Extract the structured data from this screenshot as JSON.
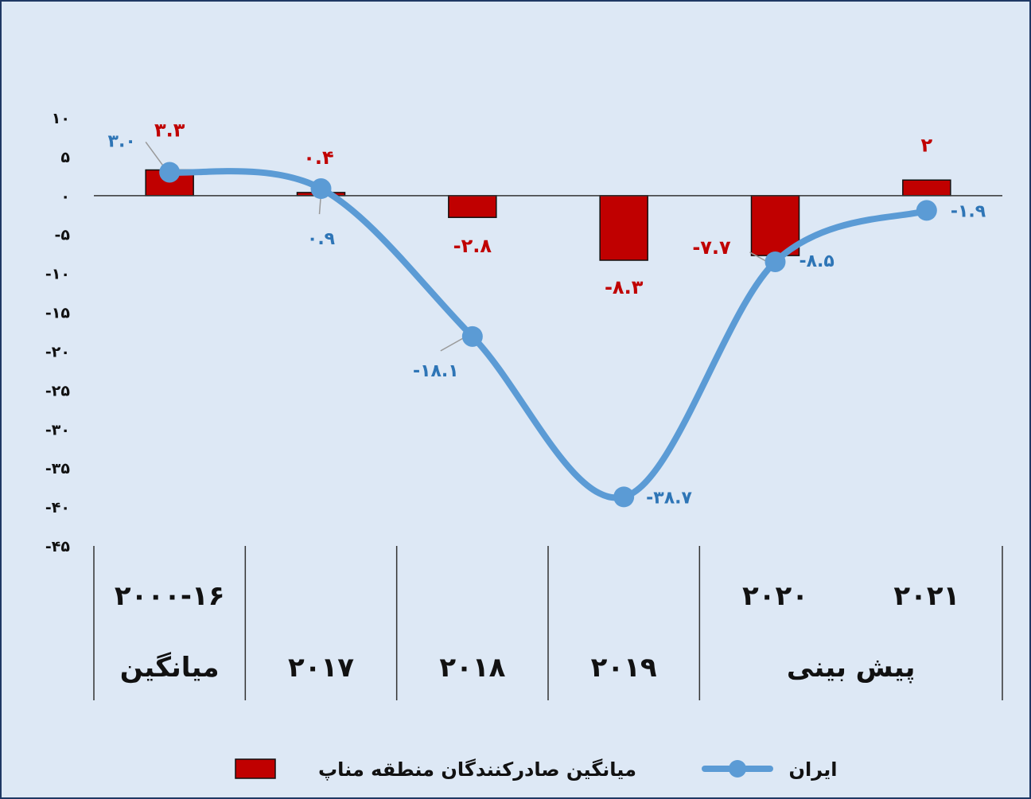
{
  "chart_data": {
    "type": "bar",
    "ylim": [
      -45,
      10
    ],
    "y_ticks": [
      "۱۰",
      "۵",
      "۰",
      "-۵",
      "-۱۰",
      "-۱۵",
      "-۲۰",
      "-۲۵",
      "-۳۰",
      "-۳۵",
      "-۴۰",
      "-۴۵"
    ],
    "y_tick_values": [
      10,
      5,
      0,
      -5,
      -10,
      -15,
      -20,
      -25,
      -30,
      -35,
      -40,
      -45
    ],
    "categories": [
      {
        "top": "۲۰۰۰-۱۶",
        "bottom": "میانگین"
      },
      {
        "top": "",
        "bottom": "۲۰۱۷"
      },
      {
        "top": "",
        "bottom": "۲۰۱۸"
      },
      {
        "top": "",
        "bottom": "۲۰۱۹"
      },
      {
        "top": "۲۰۲۰",
        "bottom": ""
      },
      {
        "top": "۲۰۲۱",
        "bottom": ""
      }
    ],
    "group_labels": [
      {
        "text": "پیش بینی",
        "from": 4,
        "to": 5
      }
    ],
    "series": [
      {
        "name": "میانگین صادرکنندگان منطقه مناپ",
        "type": "bar",
        "color": "#c00000",
        "values": [
          3.3,
          0.4,
          -2.8,
          -8.3,
          -7.7,
          2
        ],
        "labels": [
          "۳.۳",
          "۰.۴",
          "-۲.۸",
          "-۸.۳",
          "-۷.۷",
          "۲"
        ]
      },
      {
        "name": "ایران",
        "type": "line",
        "color": "#5b9bd5",
        "values": [
          3.0,
          0.9,
          -18.1,
          -38.7,
          -8.5,
          -1.9
        ],
        "labels": [
          "۳.۰",
          "۰.۹",
          "-۱۸.۱",
          "-۳۸.۷",
          "-۸.۵",
          "-۱.۹"
        ]
      }
    ],
    "legend_position": "bottom",
    "grid": false,
    "background": "#dde8f5",
    "border_color": "#1f3864"
  }
}
